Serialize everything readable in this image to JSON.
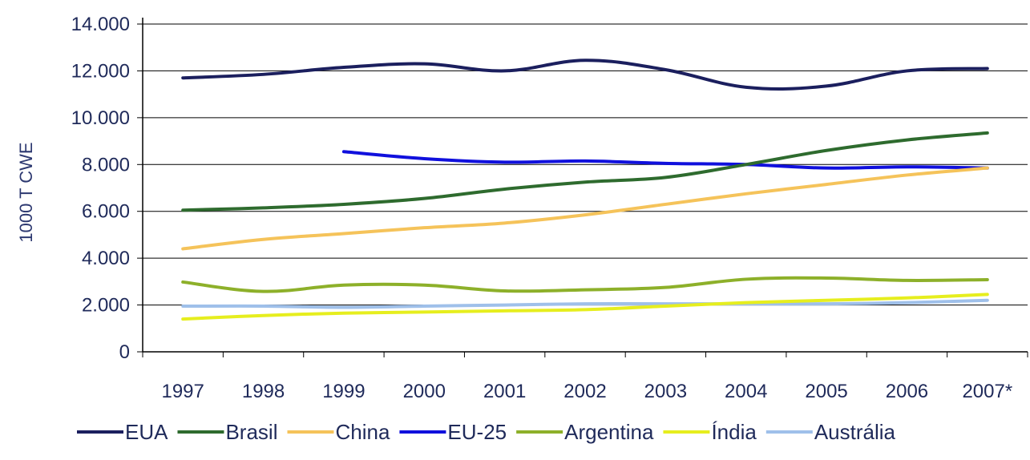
{
  "chart_data": {
    "type": "line",
    "title": "",
    "xlabel": "",
    "ylabel": "1000 T CWE",
    "categories": [
      "1997",
      "1998",
      "1999",
      "2000",
      "2001",
      "2002",
      "2003",
      "2004",
      "2005",
      "2006",
      "2007*"
    ],
    "y_ticks": [
      "0",
      "2.000",
      "4.000",
      "6.000",
      "8.000",
      "10.000",
      "12.000",
      "14.000"
    ],
    "ylim": [
      0,
      14000
    ],
    "grid": "horizontal",
    "legend_position": "bottom",
    "series": [
      {
        "name": "EUA",
        "color": "#1b1f5e",
        "values": [
          11700,
          11850,
          12150,
          12300,
          12000,
          12450,
          12050,
          11300,
          11350,
          12000,
          12100
        ]
      },
      {
        "name": "Brasil",
        "color": "#2e6b2e",
        "values": [
          6050,
          6150,
          6300,
          6550,
          6950,
          7250,
          7450,
          8000,
          8600,
          9050,
          9350
        ]
      },
      {
        "name": "China",
        "color": "#f5c35a",
        "values": [
          4400,
          4800,
          5050,
          5300,
          5500,
          5850,
          6300,
          6750,
          7150,
          7550,
          7850
        ]
      },
      {
        "name": "EU-25",
        "color": "#1010dd",
        "values": [
          null,
          null,
          8550,
          8250,
          8100,
          8150,
          8050,
          8000,
          7850,
          7900,
          7850
        ]
      },
      {
        "name": "Argentina",
        "color": "#8db02a",
        "values": [
          2980,
          2580,
          2850,
          2850,
          2600,
          2650,
          2750,
          3100,
          3150,
          3050,
          3080
        ]
      },
      {
        "name": "Índia",
        "color": "#e6ee1e",
        "values": [
          1400,
          1550,
          1650,
          1700,
          1750,
          1800,
          1950,
          2100,
          2200,
          2300,
          2450
        ]
      },
      {
        "name": "Austrália",
        "color": "#9fc0ea",
        "values": [
          1950,
          1950,
          1900,
          1950,
          2000,
          2050,
          2050,
          2050,
          2050,
          2100,
          2200
        ]
      }
    ]
  }
}
